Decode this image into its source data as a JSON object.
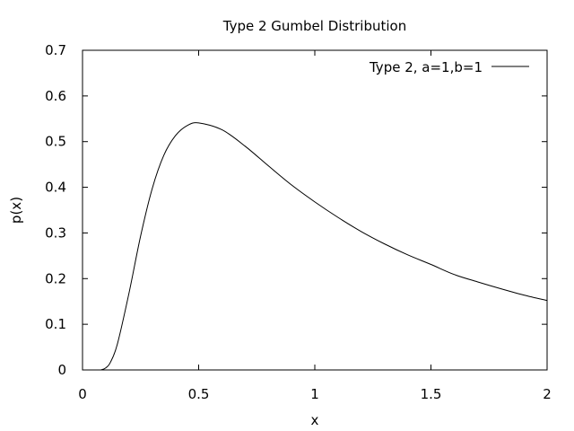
{
  "chart_data": {
    "type": "line",
    "title": "Type 2 Gumbel Distribution",
    "xlabel": "x",
    "ylabel": "p(x)",
    "xlim": [
      0,
      2
    ],
    "ylim": [
      0,
      0.7
    ],
    "xticks": [
      0,
      0.5,
      1,
      1.5,
      2
    ],
    "yticks": [
      0,
      0.1,
      0.2,
      0.3,
      0.4,
      0.5,
      0.6,
      0.7
    ],
    "xtick_labels": [
      "0",
      "0.5",
      "1",
      "1.5",
      "2"
    ],
    "ytick_labels": [
      "0",
      "0.1",
      "0.2",
      "0.3",
      "0.4",
      "0.5",
      "0.6",
      "0.7"
    ],
    "grid": false,
    "legend_position": "top-right",
    "series": [
      {
        "name": "Type 2, a=1,b=1",
        "color": "#000000",
        "x": [
          0.05,
          0.08,
          0.1,
          0.12,
          0.15,
          0.2,
          0.25,
          0.3,
          0.35,
          0.4,
          0.45,
          0.5,
          0.6,
          0.7,
          0.8,
          0.9,
          1.0,
          1.1,
          1.2,
          1.3,
          1.4,
          1.5,
          1.6,
          1.7,
          1.8,
          1.9,
          2.0
        ],
        "y": [
          0.0,
          0.0002,
          0.0045,
          0.0166,
          0.0565,
          0.168,
          0.293,
          0.397,
          0.47,
          0.513,
          0.535,
          0.541,
          0.526,
          0.49,
          0.447,
          0.405,
          0.368,
          0.334,
          0.303,
          0.276,
          0.252,
          0.231,
          0.209,
          0.193,
          0.178,
          0.164,
          0.152
        ]
      }
    ]
  }
}
